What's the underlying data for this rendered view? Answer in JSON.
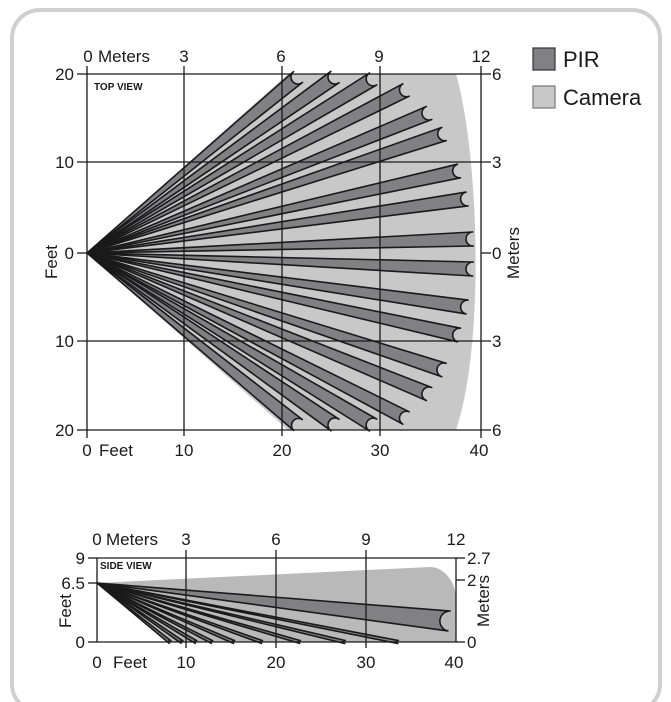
{
  "top_view": {
    "label": "TOP VIEW",
    "top_axis": {
      "title": "Meters",
      "ticks": [
        "0",
        "3",
        "6",
        "9",
        "12"
      ]
    },
    "bottom_axis": {
      "title": "Feet",
      "ticks": [
        "0",
        "10",
        "20",
        "30",
        "40"
      ]
    },
    "left_axis": {
      "title": "Feet",
      "ticks": [
        "20",
        "10",
        "0",
        "10",
        "20"
      ]
    },
    "right_axis": {
      "title": "Meters",
      "ticks": [
        "6",
        "3",
        "0",
        "3",
        "6"
      ]
    }
  },
  "side_view": {
    "label": "SIDE VIEW",
    "top_axis": {
      "title": "Meters",
      "ticks": [
        "0",
        "3",
        "6",
        "9",
        "12"
      ]
    },
    "bottom_axis": {
      "title": "Feet",
      "ticks": [
        "0",
        "10",
        "20",
        "30",
        "40"
      ]
    },
    "left_axis": {
      "title": "Feet",
      "ticks": [
        "9",
        "6.5",
        "0"
      ]
    },
    "right_axis": {
      "title": "Meters",
      "ticks": [
        "2.7",
        "2",
        "0"
      ]
    }
  },
  "legend": [
    {
      "label": "PIR",
      "color": "#808085"
    },
    {
      "label": "Camera",
      "color": "#c8c8c8"
    }
  ],
  "colors": {
    "pir": "#808085",
    "camera": "#c8c8c8",
    "frame": "#cfcfcf"
  }
}
